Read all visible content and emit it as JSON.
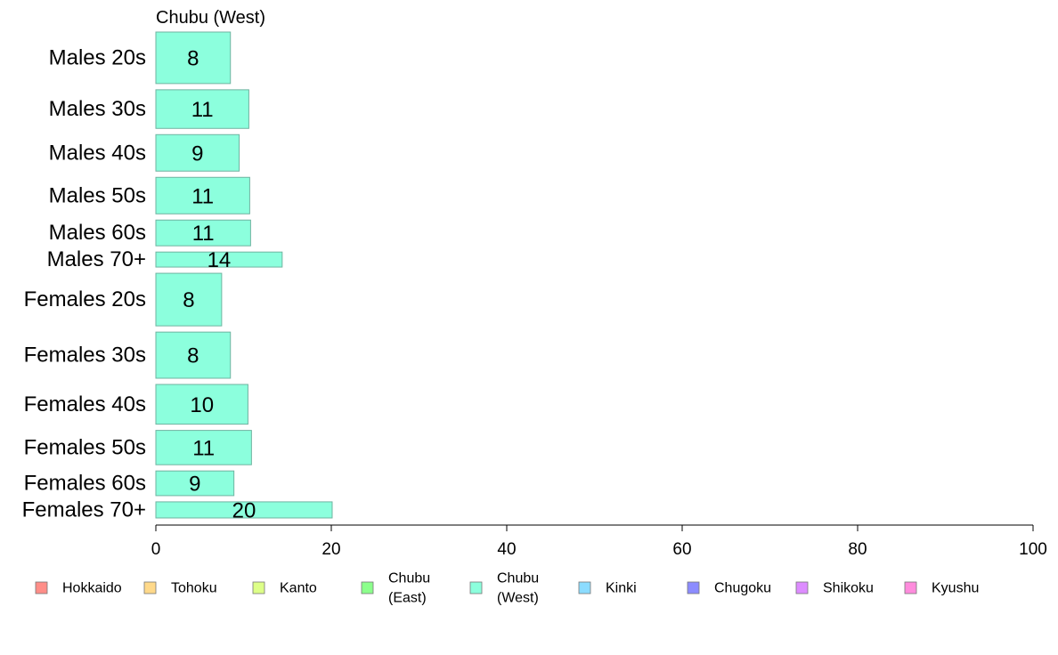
{
  "chart_data": {
    "type": "bar",
    "orientation": "horizontal",
    "title": "Chubu (West)",
    "categories": [
      "Males 20s",
      "Males 30s",
      "Males 40s",
      "Males 50s",
      "Males 60s",
      "Males 70+",
      "Females 20s",
      "Females 30s",
      "Females 40s",
      "Females 50s",
      "Females 60s",
      "Females 70+"
    ],
    "values": [
      8.5,
      10.6,
      9.5,
      10.7,
      10.8,
      14.4,
      7.5,
      8.5,
      10.5,
      10.9,
      8.9,
      20.1
    ],
    "data_labels": [
      "8",
      "11",
      "9",
      "11",
      "11",
      "14",
      "8",
      "8",
      "10",
      "11",
      "9",
      "20"
    ],
    "bar_thickness": [
      0.96,
      0.72,
      0.68,
      0.68,
      0.48,
      0.28,
      0.98,
      0.86,
      0.74,
      0.64,
      0.46,
      0.3
    ],
    "xlim": [
      0,
      100
    ],
    "xticks": [
      "0",
      "20",
      "40",
      "60",
      "80",
      "100"
    ],
    "bar_color": "#8cffdd",
    "bar_stroke": "#6fb3a0",
    "legend": {
      "placement": "bottom",
      "items": [
        {
          "label": [
            "Hokkaido"
          ],
          "color": "#ff8e88"
        },
        {
          "label": [
            "Tohoku"
          ],
          "color": "#ffd98a"
        },
        {
          "label": [
            "Kanto"
          ],
          "color": "#ddff88"
        },
        {
          "label": [
            "Chubu",
            "(East)"
          ],
          "color": "#8cff8c"
        },
        {
          "label": [
            "Chubu",
            "(West)"
          ],
          "color": "#8cffdd"
        },
        {
          "label": [
            "Kinki"
          ],
          "color": "#8cdcff"
        },
        {
          "label": [
            "Chugoku"
          ],
          "color": "#8c8cff"
        },
        {
          "label": [
            "Shikoku"
          ],
          "color": "#dd8cff"
        },
        {
          "label": [
            "Kyushu"
          ],
          "color": "#ff8cdd"
        }
      ]
    },
    "grid": false
  }
}
